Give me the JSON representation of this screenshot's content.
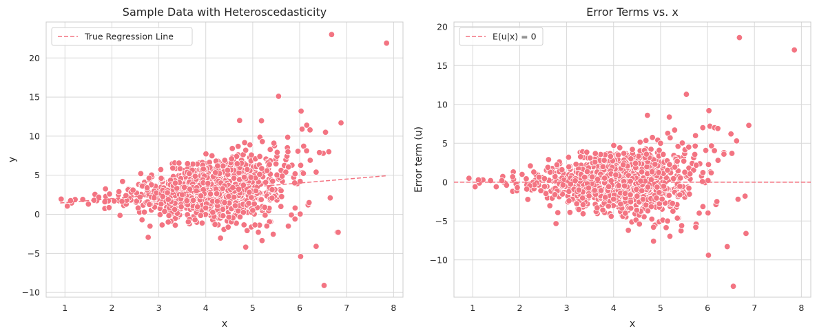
{
  "chart_data": [
    {
      "type": "scatter",
      "title": "Sample Data with Heteroscedasticity",
      "xlabel": "x",
      "ylabel": "y",
      "xlim": [
        0.6,
        8.2
      ],
      "ylim": [
        -10.6,
        24.6
      ],
      "xticks": [
        1,
        2,
        3,
        4,
        5,
        6,
        7,
        8
      ],
      "yticks": [
        -10,
        -5,
        0,
        5,
        10,
        15,
        20
      ],
      "xtick_labels": [
        "1",
        "2",
        "3",
        "4",
        "5",
        "6",
        "7",
        "8"
      ],
      "ytick_labels": [
        "−10",
        "−5",
        "0",
        "5",
        "10",
        "15",
        "20"
      ],
      "grid": true,
      "legend": {
        "location": "top-left",
        "entries": [
          {
            "label": "True Regression Line",
            "style": "dashed",
            "color": "#f37482"
          }
        ]
      },
      "line": {
        "name": "True Regression Line",
        "x": [
          0.9,
          7.85
        ],
        "y": [
          1.45,
          4.93
        ],
        "color": "#f37482"
      },
      "series": [
        {
          "name": "sample",
          "color": "#f37482",
          "n_points_approx": 1000,
          "x": [
            0.92,
            1.05,
            1.12,
            1.38,
            1.5,
            1.62,
            1.72,
            1.85,
            1.95,
            2.05,
            2.15,
            2.3,
            2.45,
            2.6,
            2.75,
            2.9,
            3.05,
            3.2,
            3.35,
            3.5,
            3.65,
            3.8,
            3.95,
            4.1,
            4.25,
            4.4,
            4.55,
            4.7,
            4.85,
            5.0,
            5.15,
            5.3,
            5.45,
            5.6,
            5.75,
            5.9,
            6.05,
            6.2,
            6.35,
            6.5,
            6.65,
            6.8,
            3.2,
            4.72,
            4.85,
            5.55,
            6.02,
            6.03,
            6.15,
            6.22,
            6.35,
            6.42,
            6.52,
            6.55,
            6.62,
            6.68,
            6.82,
            6.88,
            7.85
          ],
          "y": [
            1.95,
            1.05,
            1.75,
            1.9,
            1.3,
            1.8,
            2.2,
            1.6,
            2.6,
            1.7,
            2.9,
            2.4,
            3.1,
            2.2,
            3.4,
            2.1,
            4.6,
            1.9,
            4.0,
            2.5,
            5.2,
            3.0,
            5.8,
            2.6,
            6.2,
            1.5,
            7.1,
            3.2,
            8.2,
            0.5,
            7.4,
            -1.5,
            9.1,
            1.0,
            8.0,
            -0.6,
            10.9,
            1.5,
            5.4,
            7.8,
            2.1,
            -2.3,
            -1.0,
            12.0,
            -4.2,
            15.1,
            -5.4,
            13.2,
            11.4,
            10.8,
            -4.1,
            7.9,
            -9.1,
            10.5,
            8.0,
            23.0,
            -2.3,
            11.7,
            21.9
          ]
        }
      ]
    },
    {
      "type": "scatter",
      "title": "Error Terms vs. x",
      "xlabel": "x",
      "ylabel": "Error term (u)",
      "xlim": [
        0.6,
        8.2
      ],
      "ylim": [
        -14.8,
        20.6
      ],
      "xticks": [
        1,
        2,
        3,
        4,
        5,
        6,
        7,
        8
      ],
      "yticks": [
        -10,
        -5,
        0,
        5,
        10,
        15,
        20
      ],
      "xtick_labels": [
        "1",
        "2",
        "3",
        "4",
        "5",
        "6",
        "7",
        "8"
      ],
      "ytick_labels": [
        "−10",
        "−5",
        "0",
        "5",
        "10",
        "15",
        "20"
      ],
      "grid": true,
      "legend": {
        "location": "top-left",
        "entries": [
          {
            "label": "E(u|x) = 0",
            "style": "dashed",
            "color": "#f37482"
          }
        ]
      },
      "line": {
        "name": "E(u|x) = 0",
        "x": [
          0.6,
          8.2
        ],
        "y": [
          0,
          0
        ],
        "color": "#f37482"
      },
      "series": [
        {
          "name": "error terms",
          "color": "#f37482",
          "n_points_approx": 1000,
          "x": [
            0.92,
            1.05,
            1.12,
            1.38,
            1.5,
            1.62,
            1.72,
            1.85,
            1.95,
            2.05,
            2.15,
            2.3,
            2.45,
            2.6,
            2.75,
            2.9,
            3.05,
            3.2,
            3.35,
            3.5,
            3.65,
            3.8,
            3.95,
            4.1,
            4.25,
            4.4,
            4.55,
            4.7,
            4.85,
            5.0,
            5.15,
            5.3,
            5.45,
            5.6,
            5.75,
            5.9,
            6.05,
            6.2,
            6.35,
            6.5,
            6.65,
            6.8,
            4.72,
            4.85,
            5.55,
            6.02,
            6.03,
            6.15,
            6.22,
            6.35,
            6.42,
            6.52,
            6.55,
            6.62,
            6.68,
            6.82,
            6.88,
            7.85
          ],
          "y": [
            0.5,
            -0.6,
            0.3,
            0.2,
            -0.6,
            0.2,
            -0.4,
            0.7,
            -0.7,
            1.0,
            -0.9,
            1.3,
            -1.1,
            1.9,
            -1.6,
            1.6,
            -2.4,
            2.3,
            -2.9,
            3.1,
            -3.3,
            2.8,
            -4.4,
            3.5,
            -4.0,
            4.2,
            -5.4,
            3.6,
            -7.6,
            5.0,
            -5.0,
            6.7,
            -5.6,
            4.5,
            -5.8,
            7.0,
            7.2,
            -2.5,
            3.8,
            6.2,
            -2.2,
            -1.8,
            8.6,
            -5.8,
            11.3,
            -9.4,
            9.2,
            7.0,
            6.9,
            3.6,
            -8.3,
            3.7,
            -13.4,
            5.3,
            18.6,
            -6.6,
            7.3,
            17.0
          ]
        }
      ]
    }
  ]
}
